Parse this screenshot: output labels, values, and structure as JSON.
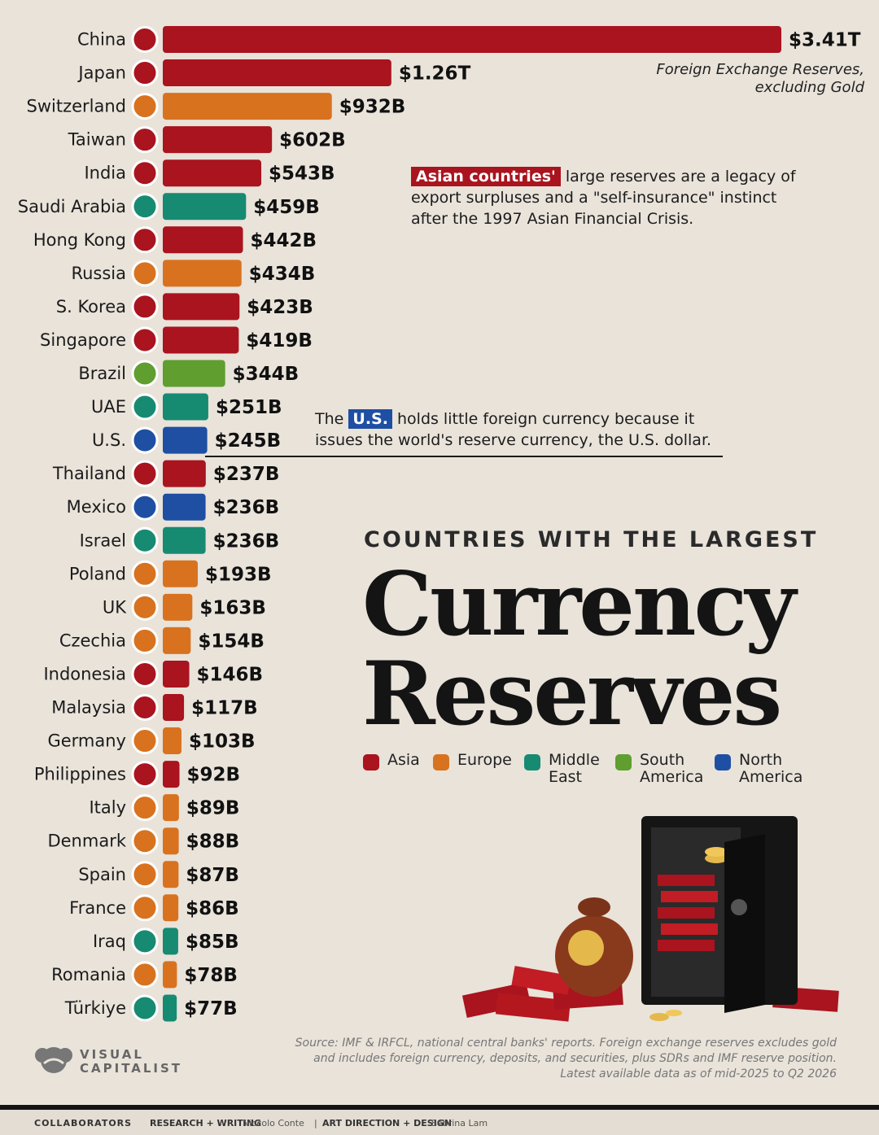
{
  "chart_data": {
    "type": "bar",
    "orientation": "horizontal",
    "title": "Currency Reserves",
    "kicker": "COUNTRIES WITH THE LARGEST",
    "subtitle": "Foreign Exchange Reserves, excluding Gold",
    "xlim": [
      0,
      3410
    ],
    "unit": "USD billions",
    "categories": [
      "China",
      "Japan",
      "Switzerland",
      "Taiwan",
      "India",
      "Saudi Arabia",
      "Hong Kong",
      "Russia",
      "S. Korea",
      "Singapore",
      "Brazil",
      "UAE",
      "U.S.",
      "Thailand",
      "Mexico",
      "Israel",
      "Poland",
      "UK",
      "Czechia",
      "Indonesia",
      "Malaysia",
      "Germany",
      "Philippines",
      "Italy",
      "Denmark",
      "Spain",
      "France",
      "Iraq",
      "Romania",
      "Türkiye"
    ],
    "values": [
      3410,
      1260,
      932,
      602,
      543,
      459,
      442,
      434,
      423,
      419,
      344,
      251,
      245,
      237,
      236,
      236,
      193,
      163,
      154,
      146,
      117,
      103,
      92,
      89,
      88,
      87,
      86,
      85,
      78,
      77
    ],
    "value_labels": [
      "$3.41T",
      "$1.26T",
      "$932B",
      "$602B",
      "$543B",
      "$459B",
      "$442B",
      "$434B",
      "$423B",
      "$419B",
      "$344B",
      "$251B",
      "$245B",
      "$237B",
      "$236B",
      "$236B",
      "$193B",
      "$163B",
      "$154B",
      "$146B",
      "$117B",
      "$103B",
      "$92B",
      "$89B",
      "$88B",
      "$87B",
      "$86B",
      "$85B",
      "$78B",
      "$77B"
    ],
    "regions": [
      "Asia",
      "Asia",
      "Europe",
      "Asia",
      "Asia",
      "Middle East",
      "Asia",
      "Europe",
      "Asia",
      "Asia",
      "South America",
      "Middle East",
      "North America",
      "Asia",
      "North America",
      "Middle East",
      "Europe",
      "Europe",
      "Europe",
      "Asia",
      "Asia",
      "Europe",
      "Asia",
      "Europe",
      "Europe",
      "Europe",
      "Europe",
      "Middle East",
      "Europe",
      "Middle East"
    ],
    "legend": [
      {
        "name": "Asia",
        "color": "#a9141e"
      },
      {
        "name": "Europe",
        "color": "#d8721f"
      },
      {
        "name": "Middle East",
        "color": "#178a72"
      },
      {
        "name": "South America",
        "color": "#5f9e2f"
      },
      {
        "name": "North America",
        "color": "#1f4fa3"
      }
    ],
    "legend_placement": "right-middle",
    "grid": false
  },
  "notes": {
    "subtitle_line1": "Foreign Exchange Reserves,",
    "subtitle_line2": "excluding Gold",
    "asia_tag": "Asian countries'",
    "asia_line1": " large reserves are a legacy of",
    "asia_line2": "export surpluses and a \"self-insurance\" instinct",
    "asia_line3": "after the 1997 Asian Financial Crisis.",
    "us_pre": "The ",
    "us_tag": "U.S.",
    "us_line1": " holds little foreign currency because it",
    "us_line2": "issues the world's reserve currency, the U.S. dollar."
  },
  "title": {
    "kicker": "COUNTRIES WITH THE LARGEST",
    "line1": "Currency",
    "line2": "Reserves"
  },
  "legend_labels": {
    "asia": "Asia",
    "europe": "Europe",
    "middle_east_1": "Middle",
    "middle_east_2": "East",
    "south_america_1": "South",
    "south_america_2": "America",
    "north_america_1": "North",
    "north_america_2": "America"
  },
  "source": {
    "line1": "Source: IMF & IRFCL, national central banks' reports. Foreign exchange reserves excludes gold",
    "line2": "and includes foreign currency, deposits, and securities, plus SDRs and IMF reserve position.",
    "line3": "Latest available data as of mid-2025 to Q2 2026"
  },
  "brand": {
    "line1": "VISUAL",
    "line2": "CAPITALIST"
  },
  "footer": {
    "collaborators": "COLLABORATORS",
    "research_label": "RESEARCH + WRITING",
    "research_name": "Niccolo Conte",
    "separator": "|",
    "art_label": "ART DIRECTION + DESIGN",
    "art_name": "Sabrina Lam"
  },
  "colors": {
    "background": "#e9e3da",
    "asia": "#a9141e",
    "europe": "#d8721f",
    "middle_east": "#178a72",
    "south_america": "#5f9e2f",
    "north_america": "#1f4fa3"
  }
}
